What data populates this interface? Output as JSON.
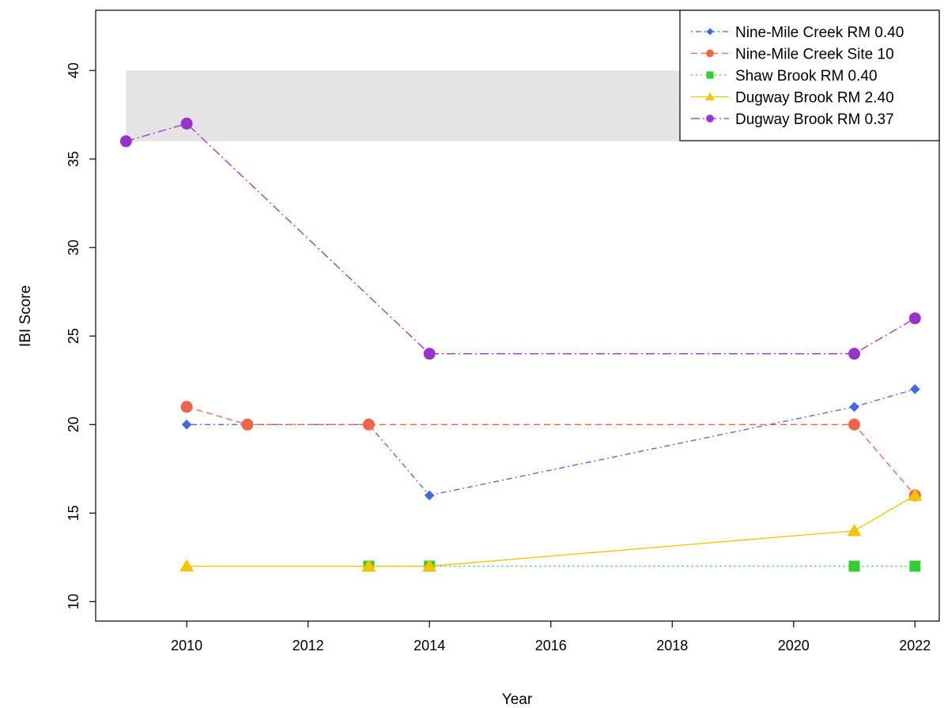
{
  "chart_data": {
    "type": "line",
    "title": "",
    "xlabel": "Year",
    "ylabel": "IBI Score",
    "xlim": [
      2008.5,
      2022.4
    ],
    "ylim": [
      8.9,
      43.4
    ],
    "x_ticks": [
      2010,
      2012,
      2014,
      2016,
      2018,
      2020,
      2022
    ],
    "y_ticks": [
      10,
      15,
      20,
      25,
      30,
      35,
      40
    ],
    "shaded_band": {
      "x": [
        2009,
        2022
      ],
      "y": [
        36,
        40
      ],
      "color": "#e4e4e4"
    },
    "legend_position": "top-right",
    "grid": false,
    "series": [
      {
        "name": "Nine-Mile Creek RM 0.40",
        "color": "#4169e1",
        "line_style": "dotdash",
        "marker": "diamond",
        "points": [
          [
            2010,
            20
          ],
          [
            2011,
            20
          ],
          [
            2013,
            20
          ],
          [
            2014,
            16
          ],
          [
            2021,
            21
          ],
          [
            2022,
            22
          ]
        ]
      },
      {
        "name": "Nine-Mile Creek Site 10",
        "color": "#f0654a",
        "line_style": "dashed",
        "marker": "circle",
        "points": [
          [
            2010,
            21
          ],
          [
            2011,
            20
          ],
          [
            2013,
            20
          ],
          [
            2021,
            20
          ],
          [
            2022,
            16
          ]
        ]
      },
      {
        "name": "Shaw Brook RM 0.40",
        "color": "#32cd32",
        "line_style": "dotted",
        "marker": "square",
        "points": [
          [
            2013,
            12
          ],
          [
            2014,
            12
          ],
          [
            2021,
            12
          ],
          [
            2022,
            12
          ]
        ]
      },
      {
        "name": "Dugway Brook RM 2.40",
        "color": "#f5c400",
        "line_style": "solid",
        "marker": "triangle",
        "points": [
          [
            2010,
            12
          ],
          [
            2013,
            12
          ],
          [
            2014,
            12
          ],
          [
            2021,
            14
          ],
          [
            2022,
            16
          ]
        ]
      },
      {
        "name": "Dugway Brook RM 0.37",
        "color": "#9932cc",
        "line_style": "longdash-dot",
        "marker": "circle",
        "points": [
          [
            2009,
            36
          ],
          [
            2010,
            37
          ],
          [
            2014,
            24
          ],
          [
            2021,
            24
          ],
          [
            2022,
            26
          ]
        ]
      }
    ]
  }
}
